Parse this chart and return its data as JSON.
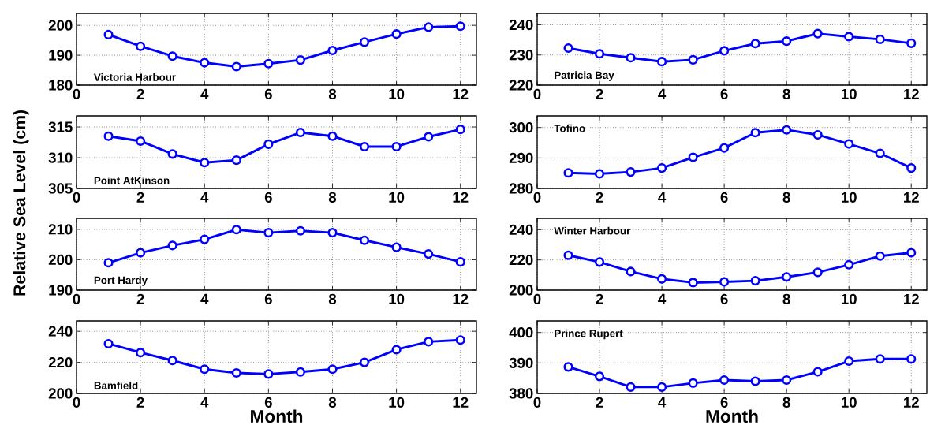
{
  "chart_data": [
    {
      "type": "line",
      "x": [
        1,
        2,
        3,
        4,
        5,
        6,
        7,
        8,
        9,
        10,
        11,
        12
      ],
      "xlim": [
        0,
        12.5
      ],
      "xticks": [
        0,
        2,
        4,
        6,
        8,
        10,
        12
      ],
      "ylim": [
        180,
        204
      ],
      "yticks": [
        180,
        190,
        200
      ],
      "grid": true,
      "marker": "circle",
      "line_style": "solid",
      "annotations": [
        "Victoria Harbour"
      ],
      "series": [
        {
          "color": "#0000ff",
          "values": [
            196.9,
            193,
            189.7,
            187.5,
            186.2,
            187.2,
            188.4,
            191.6,
            194.4,
            197.1,
            199.4,
            199.7
          ]
        }
      ]
    },
    {
      "type": "line",
      "x": [
        1,
        2,
        3,
        4,
        5,
        6,
        7,
        8,
        9,
        10,
        11,
        12
      ],
      "xlim": [
        0,
        12.5
      ],
      "xticks": [
        0,
        2,
        4,
        6,
        8,
        10,
        12
      ],
      "ylim": [
        220,
        243.8
      ],
      "yticks": [
        220,
        230,
        240
      ],
      "grid": true,
      "marker": "circle",
      "line_style": "solid",
      "annotations": [
        "Patricia Bay"
      ],
      "series": [
        {
          "color": "#0000ff",
          "values": [
            232.3,
            230.4,
            229.1,
            227.8,
            228.4,
            231.4,
            233.8,
            234.6,
            237.1,
            236.1,
            235.2,
            233.9
          ]
        }
      ]
    },
    {
      "type": "line",
      "x": [
        1,
        2,
        3,
        4,
        5,
        6,
        7,
        8,
        9,
        10,
        11,
        12
      ],
      "xlim": [
        0,
        12.5
      ],
      "xticks": [
        0,
        2,
        4,
        6,
        8,
        10,
        12
      ],
      "ylim": [
        305,
        316.8
      ],
      "yticks": [
        305,
        310,
        315
      ],
      "grid": true,
      "marker": "circle",
      "line_style": "solid",
      "annotations": [
        "Point AtKinson"
      ],
      "ylabel": "Relative Sea Level (cm)",
      "series": [
        {
          "color": "#0000ff",
          "values": [
            313.5,
            312.7,
            310.6,
            309.2,
            309.6,
            312.2,
            314.1,
            313.5,
            311.8,
            311.8,
            313.4,
            314.6
          ]
        }
      ]
    },
    {
      "type": "line",
      "x": [
        1,
        2,
        3,
        4,
        5,
        6,
        7,
        8,
        9,
        10,
        11,
        12
      ],
      "xlim": [
        0,
        12.5
      ],
      "xticks": [
        0,
        2,
        4,
        6,
        8,
        10,
        12
      ],
      "ylim": [
        280,
        303.8
      ],
      "yticks": [
        280,
        290,
        300
      ],
      "grid": true,
      "marker": "circle",
      "line_style": "solid",
      "annotations": [
        "Tofino"
      ],
      "series": [
        {
          "color": "#0000ff",
          "values": [
            285.1,
            284.8,
            285.4,
            286.7,
            290.2,
            293.3,
            298.3,
            299.2,
            297.6,
            294.6,
            291.5,
            286.7
          ]
        }
      ]
    },
    {
      "type": "line",
      "x": [
        1,
        2,
        3,
        4,
        5,
        6,
        7,
        8,
        9,
        10,
        11,
        12
      ],
      "xlim": [
        0,
        12.5
      ],
      "xticks": [
        0,
        2,
        4,
        6,
        8,
        10,
        12
      ],
      "ylim": [
        190,
        213.6
      ],
      "yticks": [
        190,
        200,
        210
      ],
      "grid": true,
      "marker": "circle",
      "line_style": "solid",
      "annotations": [
        "Port Hardy"
      ],
      "series": [
        {
          "color": "#0000ff",
          "values": [
            199.0,
            202.3,
            204.7,
            206.7,
            209.9,
            208.9,
            209.5,
            208.9,
            206.4,
            204.1,
            201.9,
            199.3
          ]
        }
      ]
    },
    {
      "type": "line",
      "x": [
        1,
        2,
        3,
        4,
        5,
        6,
        7,
        8,
        9,
        10,
        11,
        12
      ],
      "xlim": [
        0,
        12.5
      ],
      "xticks": [
        0,
        2,
        4,
        6,
        8,
        10,
        12
      ],
      "ylim": [
        200,
        247.5
      ],
      "yticks": [
        200,
        220,
        240
      ],
      "grid": true,
      "marker": "circle",
      "line_style": "solid",
      "annotations": [
        "Winter Harbour"
      ],
      "series": [
        {
          "color": "#0000ff",
          "values": [
            223.1,
            218.6,
            212.3,
            207.4,
            205.0,
            205.5,
            206.2,
            208.7,
            211.8,
            216.8,
            222.6,
            224.8
          ]
        }
      ]
    },
    {
      "type": "line",
      "x": [
        1,
        2,
        3,
        4,
        5,
        6,
        7,
        8,
        9,
        10,
        11,
        12
      ],
      "xlim": [
        0,
        12.5
      ],
      "xticks": [
        0,
        2,
        4,
        6,
        8,
        10,
        12
      ],
      "ylim": [
        200,
        246.7
      ],
      "yticks": [
        200,
        220,
        240
      ],
      "grid": true,
      "marker": "circle",
      "line_style": "solid",
      "annotations": [
        "Bamfield"
      ],
      "xlabel": "Month",
      "series": [
        {
          "color": "#0000ff",
          "values": [
            232.0,
            226.3,
            221.2,
            215.6,
            213.2,
            212.5,
            213.8,
            215.6,
            220.0,
            228.2,
            233.3,
            234.4
          ]
        }
      ]
    },
    {
      "type": "line",
      "x": [
        1,
        2,
        3,
        4,
        5,
        6,
        7,
        8,
        9,
        10,
        11,
        12
      ],
      "xlim": [
        0,
        12.5
      ],
      "xticks": [
        0,
        2,
        4,
        6,
        8,
        10,
        12
      ],
      "ylim": [
        380,
        403.8
      ],
      "yticks": [
        380,
        390,
        400
      ],
      "grid": true,
      "marker": "circle",
      "line_style": "solid",
      "annotations": [
        "Prince Rupert"
      ],
      "xlabel": "Month",
      "series": [
        {
          "color": "#0000ff",
          "values": [
            388.7,
            385.6,
            382.1,
            382.1,
            383.4,
            384.4,
            384.0,
            384.4,
            387.1,
            390.6,
            391.3,
            391.3
          ]
        }
      ]
    }
  ]
}
